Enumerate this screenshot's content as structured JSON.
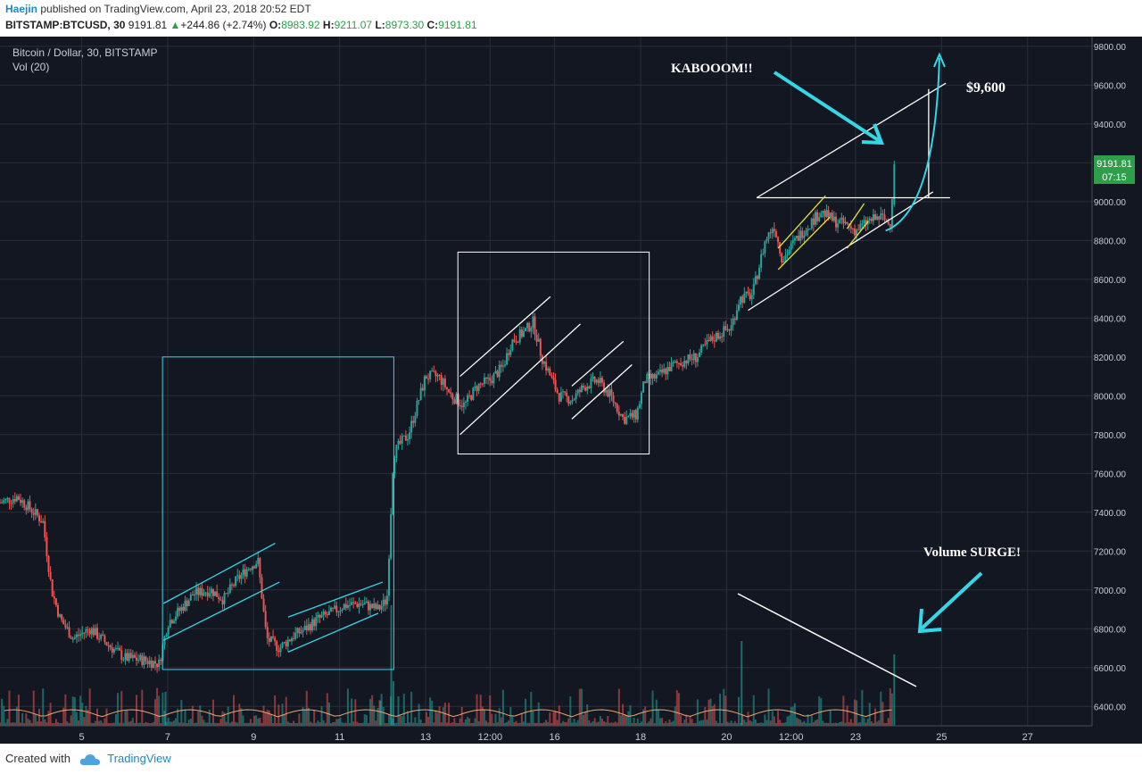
{
  "header": {
    "author": "Haejin",
    "published": " published on TradingView.com, April 23, 2018 20:52 EDT",
    "symbol": "BITSTAMP:BTCUSD, 30",
    "price": "9191.81",
    "change_arrow": "▲",
    "change": "+244.86 (+2.74%)",
    "o_label": "O:",
    "o_value": "8983.92",
    "h_label": "H:",
    "h_value": "9211.07",
    "l_label": "L:",
    "l_value": "8973.30",
    "c_label": "C:",
    "c_value": "9191.81"
  },
  "legend": {
    "title": "Bitcoin / Dollar, 30, BITSTAMP",
    "volume": "Vol (20)"
  },
  "price_label": {
    "value": "9191.81",
    "countdown": "07:15"
  },
  "annotations": {
    "kabooom": "KABOOOM!!",
    "target": "$9,600",
    "volume": "Volume SURGE!"
  },
  "footer": {
    "created_with": "Created with",
    "brand": "TradingView"
  },
  "colors": {
    "background": "#131722",
    "grid": "#2a2e39",
    "up": "#26a69a",
    "down": "#ef5350",
    "cyan": "#37d6e6",
    "white": "#ffffff",
    "yellow": "#e3e33a",
    "price_tag": "#2e9e4b",
    "vol_ma": "#f0a36c"
  },
  "chart_data": {
    "type": "candlestick",
    "title": "Bitcoin / Dollar, 30, BITSTAMP",
    "ylim": [
      6300,
      9850
    ],
    "xlim": [
      3.1,
      28.5
    ],
    "y_ticks": [
      6400,
      6600,
      6800,
      7000,
      7200,
      7400,
      7600,
      7800,
      8000,
      8200,
      8400,
      8600,
      8800,
      9000,
      9200,
      9400,
      9600,
      9800
    ],
    "x_ticks": [
      {
        "label": "5",
        "x": 5
      },
      {
        "label": "7",
        "x": 7
      },
      {
        "label": "9",
        "x": 9
      },
      {
        "label": "11",
        "x": 11
      },
      {
        "label": "13",
        "x": 13
      },
      {
        "label": "12:00",
        "x": 14.5
      },
      {
        "label": "16",
        "x": 16
      },
      {
        "label": "18",
        "x": 18
      },
      {
        "label": "20",
        "x": 20
      },
      {
        "label": "12:00",
        "x": 21.5
      },
      {
        "label": "23",
        "x": 23
      },
      {
        "label": "25",
        "x": 25
      },
      {
        "label": "27",
        "x": 27
      }
    ],
    "price_path": [
      [
        3.1,
        7450
      ],
      [
        3.5,
        7480
      ],
      [
        3.8,
        7420
      ],
      [
        4.1,
        7350
      ],
      [
        4.3,
        7000
      ],
      [
        4.5,
        6850
      ],
      [
        4.8,
        6750
      ],
      [
        5.2,
        6800
      ],
      [
        5.6,
        6720
      ],
      [
        6.0,
        6650
      ],
      [
        6.4,
        6640
      ],
      [
        6.8,
        6620
      ],
      [
        7.0,
        6830
      ],
      [
        7.3,
        6900
      ],
      [
        7.6,
        6980
      ],
      [
        8.0,
        7000
      ],
      [
        8.3,
        6950
      ],
      [
        8.6,
        7050
      ],
      [
        8.9,
        7120
      ],
      [
        9.1,
        7150
      ],
      [
        9.3,
        6750
      ],
      [
        9.6,
        6700
      ],
      [
        9.9,
        6760
      ],
      [
        10.2,
        6800
      ],
      [
        10.5,
        6850
      ],
      [
        10.8,
        6880
      ],
      [
        11.1,
        6920
      ],
      [
        11.5,
        6930
      ],
      [
        11.9,
        6900
      ],
      [
        12.1,
        6950
      ],
      [
        12.25,
        7700
      ],
      [
        12.4,
        7750
      ],
      [
        12.6,
        7800
      ],
      [
        12.8,
        7950
      ],
      [
        13.0,
        8100
      ],
      [
        13.3,
        8100
      ],
      [
        13.6,
        8000
      ],
      [
        13.9,
        7950
      ],
      [
        14.2,
        8050
      ],
      [
        14.5,
        8080
      ],
      [
        14.8,
        8150
      ],
      [
        15.0,
        8280
      ],
      [
        15.3,
        8330
      ],
      [
        15.5,
        8380
      ],
      [
        15.7,
        8200
      ],
      [
        15.9,
        8100
      ],
      [
        16.1,
        8000
      ],
      [
        16.4,
        7980
      ],
      [
        16.7,
        8050
      ],
      [
        17.0,
        8080
      ],
      [
        17.3,
        8000
      ],
      [
        17.6,
        7880
      ],
      [
        17.9,
        7900
      ],
      [
        18.1,
        8080
      ],
      [
        18.4,
        8100
      ],
      [
        18.7,
        8150
      ],
      [
        19.0,
        8180
      ],
      [
        19.3,
        8200
      ],
      [
        19.6,
        8280
      ],
      [
        19.9,
        8330
      ],
      [
        20.1,
        8350
      ],
      [
        20.3,
        8500
      ],
      [
        20.6,
        8520
      ],
      [
        20.9,
        8800
      ],
      [
        21.1,
        8880
      ],
      [
        21.3,
        8700
      ],
      [
        21.6,
        8800
      ],
      [
        21.9,
        8880
      ],
      [
        22.2,
        8950
      ],
      [
        22.5,
        8900
      ],
      [
        22.8,
        8880
      ],
      [
        23.0,
        8850
      ],
      [
        23.3,
        8900
      ],
      [
        23.6,
        8920
      ],
      [
        23.8,
        8880
      ],
      [
        23.9,
        9191.81
      ]
    ],
    "last_price": 9191.81,
    "overlays": {
      "cyan_box": {
        "x": [
          6.88,
          12.26
        ],
        "y": [
          6590,
          8200
        ]
      },
      "white_box": {
        "x": [
          13.75,
          18.2
        ],
        "y": [
          7700,
          8740
        ]
      },
      "kabooom_target": 9600,
      "breakout_level": 9020
    }
  }
}
